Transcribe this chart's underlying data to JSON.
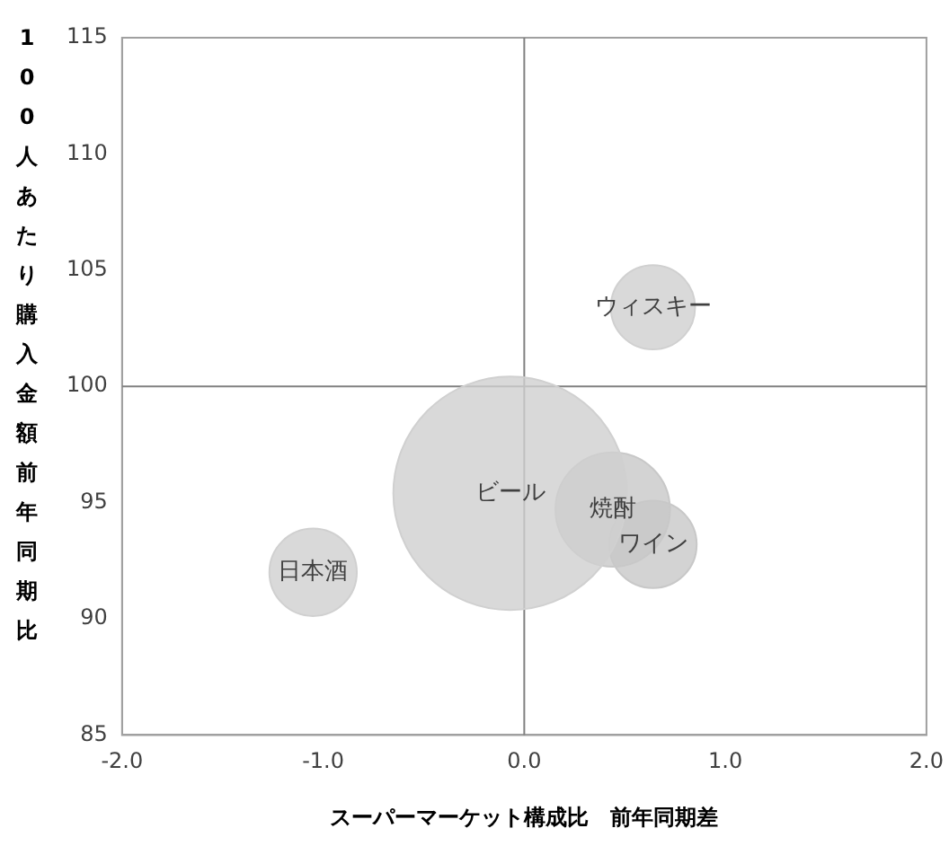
{
  "chart_data": {
    "type": "bubble",
    "xlabel": "スーパーマーケット構成比　前年同期差",
    "ylabel": "100人あたり購入金額前年同期比",
    "xlim": [
      -2,
      2
    ],
    "ylim": [
      85,
      115
    ],
    "xticks": [
      {
        "value": -2,
        "label": "-2.0"
      },
      {
        "value": -1,
        "label": "-1.0"
      },
      {
        "value": 0,
        "label": "0.0"
      },
      {
        "value": 1,
        "label": "1.0"
      },
      {
        "value": 2,
        "label": "2.0"
      }
    ],
    "yticks": [
      85,
      90,
      95,
      100,
      105,
      110,
      115
    ],
    "grid": false,
    "legend": false,
    "ref_lines": [
      {
        "axis": "x",
        "value": 0,
        "color": "#808080"
      },
      {
        "axis": "y",
        "value": 100,
        "color": "#808080"
      }
    ],
    "series": [
      {
        "name": "ビール",
        "color": "#d0d0d0",
        "x": [
          -0.07
        ],
        "values": [
          95.4
        ],
        "sizes": [
          1
        ]
      },
      {
        "name": "焼酎",
        "color": "#c8c8c8",
        "x": [
          0.44
        ],
        "values": [
          94.7
        ],
        "sizes": [
          0.24
        ]
      },
      {
        "name": "ワイン",
        "color": "#c8c8c8",
        "x": [
          0.64
        ],
        "values": [
          93.2
        ],
        "sizes": [
          0.14
        ]
      },
      {
        "name": "ウィスキー",
        "color": "#d0d0d0",
        "x": [
          0.64
        ],
        "values": [
          103.4
        ],
        "sizes": [
          0.13
        ]
      },
      {
        "name": "日本酒",
        "color": "#d0d0d0",
        "x": [
          -1.05
        ],
        "values": [
          92.0
        ],
        "sizes": [
          0.14
        ]
      }
    ]
  }
}
